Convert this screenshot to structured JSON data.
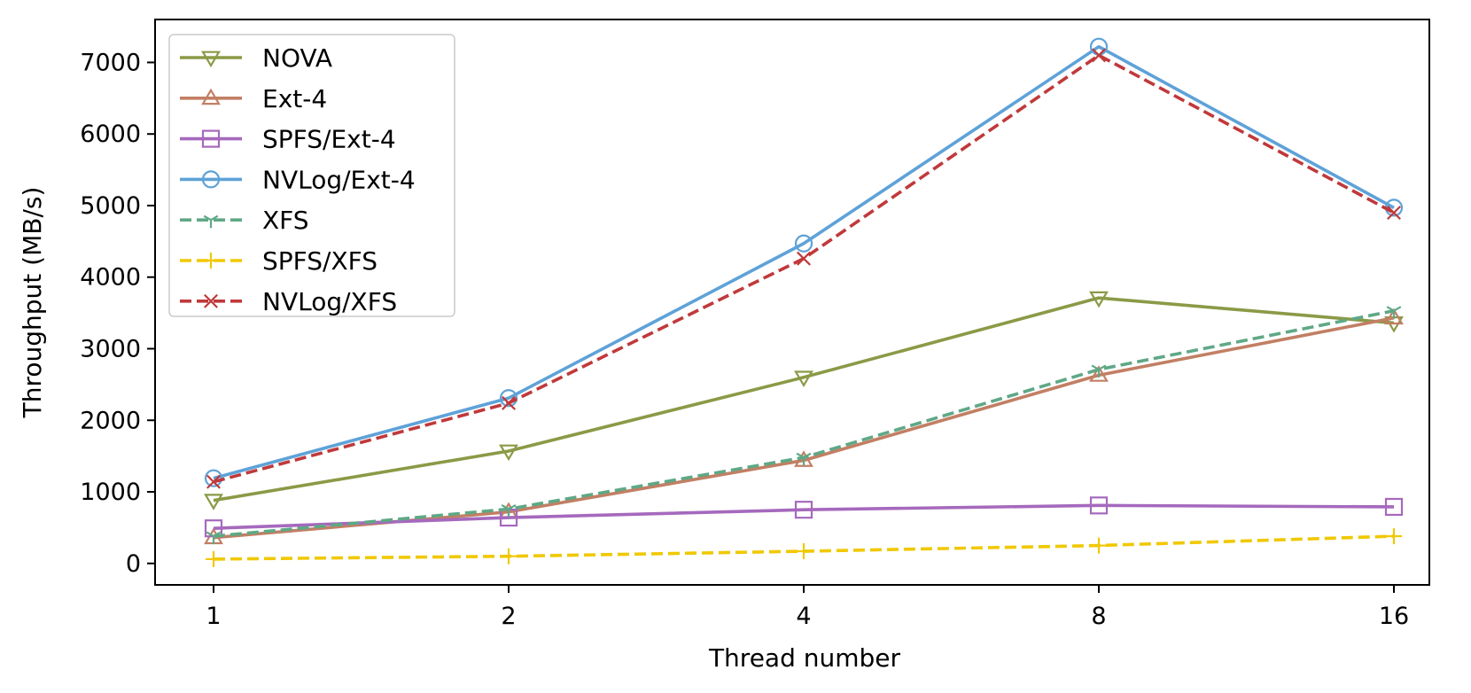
{
  "chart_data": {
    "type": "line",
    "title": "",
    "xlabel": "Thread number",
    "ylabel": "Throughput (MB/s)",
    "categories": [
      "1",
      "2",
      "4",
      "8",
      "16"
    ],
    "ylim": [
      -300,
      7600
    ],
    "yticks": [
      0,
      1000,
      2000,
      3000,
      4000,
      5000,
      6000,
      7000
    ],
    "grid": false,
    "legend_position": "top-left",
    "series": [
      {
        "name": "NOVA",
        "values": [
          880,
          1570,
          2600,
          3710,
          3360
        ],
        "color": "#8a9a46",
        "dash": "solid",
        "marker": "triangle-down"
      },
      {
        "name": "Ext-4",
        "values": [
          360,
          720,
          1440,
          2630,
          3430
        ],
        "color": "#c27f64",
        "dash": "solid",
        "marker": "triangle-up"
      },
      {
        "name": "SPFS/Ext-4",
        "values": [
          490,
          640,
          750,
          810,
          790
        ],
        "color": "#a569bd",
        "dash": "solid",
        "marker": "square"
      },
      {
        "name": "NVLog/Ext-4",
        "values": [
          1190,
          2310,
          4470,
          7220,
          4970
        ],
        "color": "#5ea2d8",
        "dash": "solid",
        "marker": "circle"
      },
      {
        "name": "XFS",
        "values": [
          380,
          760,
          1480,
          2710,
          3530
        ],
        "color": "#5fa886",
        "dash": "dashed",
        "marker": "tri-down"
      },
      {
        "name": "SPFS/XFS",
        "values": [
          60,
          100,
          170,
          250,
          380
        ],
        "color": "#f0c800",
        "dash": "dashed",
        "marker": "plus"
      },
      {
        "name": "NVLog/XFS",
        "values": [
          1140,
          2240,
          4260,
          7100,
          4900
        ],
        "color": "#c0393b",
        "dash": "dashed",
        "marker": "x"
      }
    ]
  }
}
